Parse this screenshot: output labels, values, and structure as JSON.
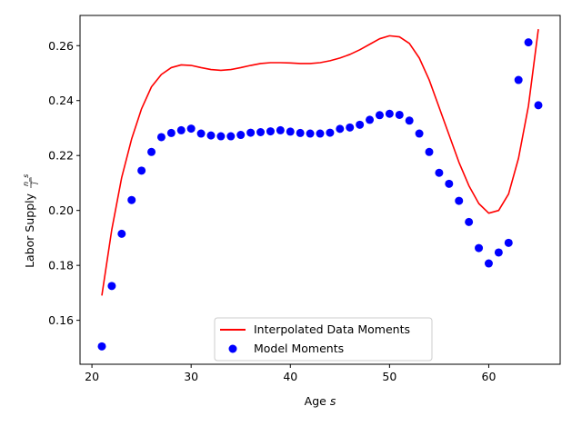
{
  "chart_data": {
    "type": "line+scatter",
    "xlabel": "Age",
    "xlabel_var": "s",
    "ylabel": "Labor Supply",
    "ylabel_frac_num": "n_s",
    "ylabel_frac_den": "l̃",
    "xlim": [
      18.8,
      67.2
    ],
    "ylim": [
      0.144,
      0.271
    ],
    "xticks": [
      20,
      30,
      40,
      50,
      60
    ],
    "yticks": [
      0.16,
      0.18,
      0.2,
      0.22,
      0.24,
      0.26
    ],
    "xtick_labels": [
      "20",
      "30",
      "40",
      "50",
      "60"
    ],
    "ytick_labels": [
      "0.16",
      "0.18",
      "0.20",
      "0.22",
      "0.24",
      "0.26"
    ],
    "grid": false,
    "legend_position": "lower-center",
    "series": [
      {
        "name": "Interpolated Data Moments",
        "kind": "line",
        "color": "#ff0000",
        "x": [
          21,
          22,
          23,
          24,
          25,
          26,
          27,
          28,
          29,
          30,
          31,
          32,
          33,
          34,
          35,
          36,
          37,
          38,
          39,
          40,
          41,
          42,
          43,
          44,
          45,
          46,
          47,
          48,
          49,
          50,
          51,
          52,
          53,
          54,
          55,
          56,
          57,
          58,
          59,
          60,
          61,
          62,
          63,
          64,
          65
        ],
        "y": [
          0.169,
          0.193,
          0.212,
          0.226,
          0.237,
          0.245,
          0.2495,
          0.252,
          0.253,
          0.2528,
          0.252,
          0.2513,
          0.251,
          0.2513,
          0.252,
          0.2528,
          0.2535,
          0.2538,
          0.2538,
          0.2537,
          0.2535,
          0.2535,
          0.2538,
          0.2545,
          0.2555,
          0.2568,
          0.2585,
          0.2605,
          0.2625,
          0.2636,
          0.2632,
          0.2608,
          0.2555,
          0.2475,
          0.2375,
          0.2275,
          0.2175,
          0.209,
          0.2025,
          0.199,
          0.2,
          0.206,
          0.219,
          0.238,
          0.266
        ]
      },
      {
        "name": "Model Moments",
        "kind": "scatter",
        "color": "#0000ff",
        "x": [
          21,
          22,
          23,
          24,
          25,
          26,
          27,
          28,
          29,
          30,
          31,
          32,
          33,
          34,
          35,
          36,
          37,
          38,
          39,
          40,
          41,
          42,
          43,
          44,
          45,
          46,
          47,
          48,
          49,
          50,
          51,
          52,
          53,
          54,
          55,
          56,
          57,
          58,
          59,
          60,
          61,
          62,
          63,
          64,
          65
        ],
        "y": [
          0.1505,
          0.1725,
          0.1915,
          0.2038,
          0.2145,
          0.2213,
          0.2267,
          0.2282,
          0.2292,
          0.2298,
          0.228,
          0.2273,
          0.227,
          0.227,
          0.2275,
          0.2283,
          0.2285,
          0.2288,
          0.2292,
          0.2287,
          0.2282,
          0.228,
          0.228,
          0.2283,
          0.2297,
          0.2302,
          0.2312,
          0.233,
          0.2347,
          0.2352,
          0.2348,
          0.2327,
          0.228,
          0.2213,
          0.2137,
          0.2097,
          0.2035,
          0.1958,
          0.1863,
          0.1807,
          0.1847,
          0.1882,
          0.2475,
          0.2612,
          0.2383
        ]
      }
    ]
  }
}
